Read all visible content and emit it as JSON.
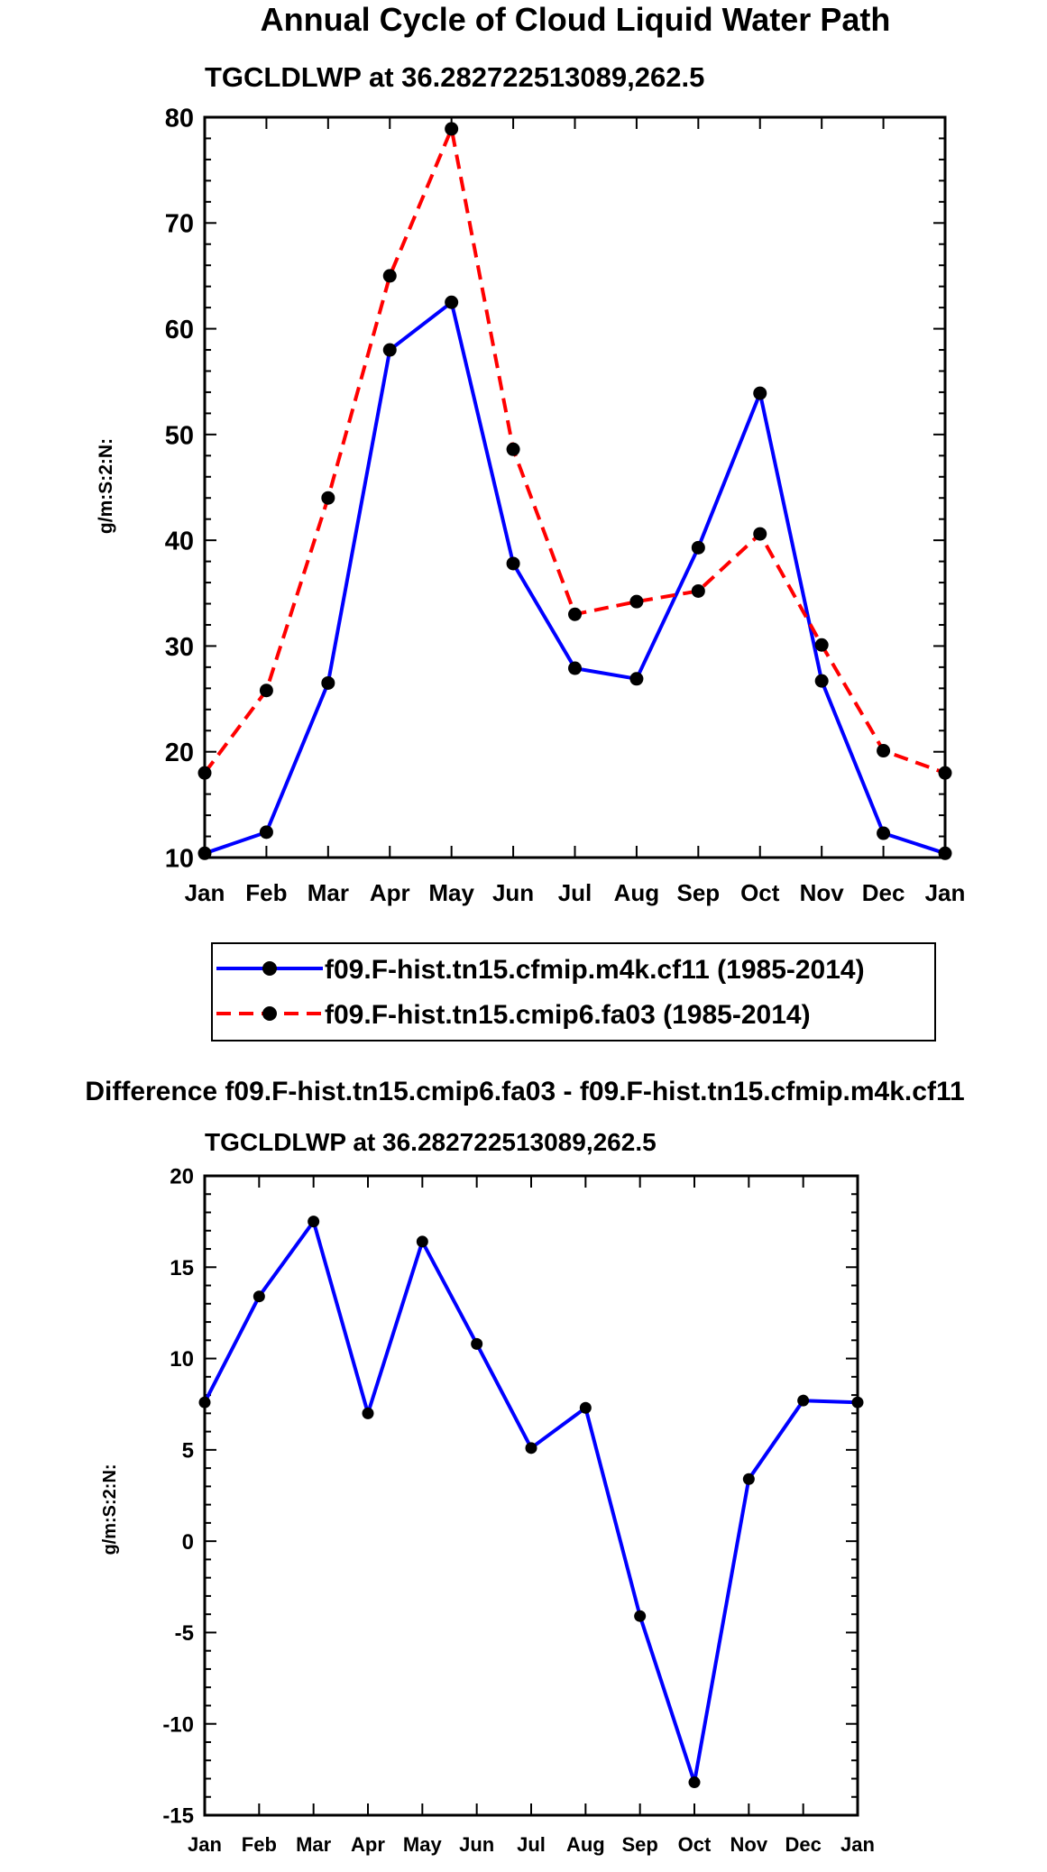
{
  "main_title": "Annual Cycle of Cloud Liquid Water Path",
  "colors": {
    "model_a": "#0000ff",
    "model_b": "#ff0000",
    "marker": "#000000",
    "diff": "#0000ff"
  },
  "chart_data": [
    {
      "type": "line",
      "title": "TGCLDLWP at 36.282722513089,262.5",
      "xlabel": "",
      "ylabel": "g/m:S:2:N:",
      "categories": [
        "Jan",
        "Feb",
        "Mar",
        "Apr",
        "May",
        "Jun",
        "Jul",
        "Aug",
        "Sep",
        "Oct",
        "Nov",
        "Dec",
        "Jan"
      ],
      "ylim": [
        10,
        80
      ],
      "yticks": [
        "10",
        "20",
        "30",
        "40",
        "50",
        "60",
        "70",
        "80"
      ],
      "series": [
        {
          "name": "f09.F-hist.tn15.cfmip.m4k.cf11 (1985-2014)",
          "style": "solid",
          "color": "#0000ff",
          "values": [
            10.4,
            12.4,
            26.5,
            58.0,
            62.5,
            37.8,
            27.9,
            26.9,
            39.3,
            53.9,
            26.7,
            12.3,
            10.4
          ]
        },
        {
          "name": "f09.F-hist.tn15.cmip6.fa03 (1985-2014)",
          "style": "dashed",
          "color": "#ff0000",
          "values": [
            18.0,
            25.8,
            44.0,
            65.0,
            78.9,
            48.6,
            33.0,
            34.2,
            35.2,
            40.6,
            30.1,
            20.1,
            18.0
          ]
        }
      ],
      "legend": "below"
    },
    {
      "type": "line",
      "header": "Difference f09.F-hist.tn15.cmip6.fa03 - f09.F-hist.tn15.cfmip.m4k.cf11",
      "title": "TGCLDLWP at 36.282722513089,262.5",
      "xlabel": "",
      "ylabel": "g/m:S:2:N:",
      "categories": [
        "Jan",
        "Feb",
        "Mar",
        "Apr",
        "May",
        "Jun",
        "Jul",
        "Aug",
        "Sep",
        "Oct",
        "Nov",
        "Dec",
        "Jan"
      ],
      "ylim": [
        -15,
        20
      ],
      "yticks": [
        "-15",
        "-10",
        "-5",
        "0",
        "5",
        "10",
        "15",
        "20"
      ],
      "series": [
        {
          "name": "difference",
          "style": "solid",
          "color": "#0000ff",
          "values": [
            7.6,
            13.4,
            17.5,
            7.0,
            16.4,
            10.8,
            5.1,
            7.3,
            -4.1,
            -13.2,
            3.4,
            7.7,
            7.6
          ]
        }
      ]
    }
  ]
}
